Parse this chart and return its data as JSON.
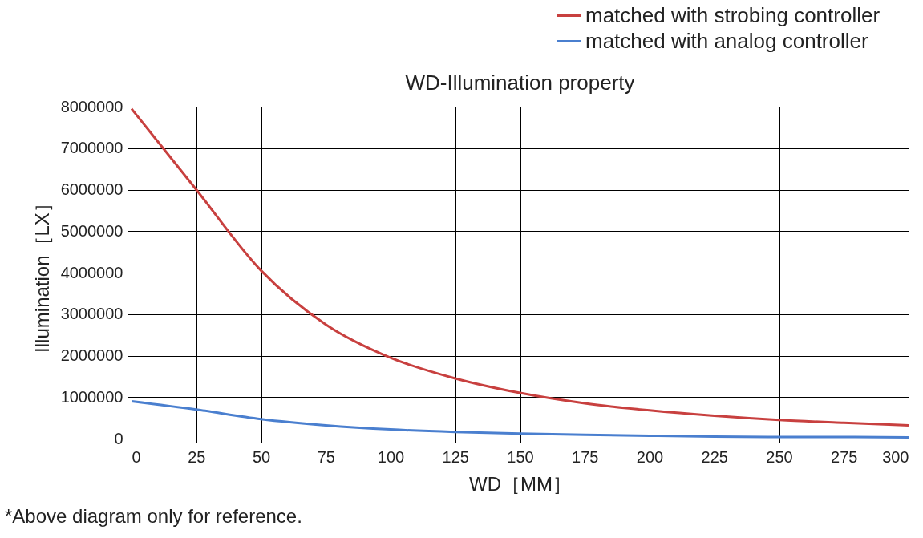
{
  "chart_data": {
    "type": "line",
    "title": "WD-Illumination property",
    "xlabel": "WD［MM］",
    "ylabel": "Illumination［LX］",
    "x": [
      0,
      25,
      50,
      75,
      100,
      125,
      150,
      175,
      200,
      225,
      250,
      275,
      300
    ],
    "series": [
      {
        "name": "matched with strobing controller",
        "color": "#c8403f",
        "values": [
          7950000,
          6000000,
          4050000,
          2750000,
          1950000,
          1450000,
          1100000,
          850000,
          680000,
          550000,
          450000,
          380000,
          320000
        ]
      },
      {
        "name": "matched with analog controller",
        "color": "#4a7fcf",
        "values": [
          900000,
          700000,
          470000,
          320000,
          220000,
          160000,
          120000,
          90000,
          70000,
          50000,
          40000,
          40000,
          30000
        ]
      }
    ],
    "xlim": [
      0,
      300
    ],
    "xticks": [
      0,
      25,
      50,
      75,
      100,
      125,
      150,
      175,
      200,
      225,
      250,
      275,
      300
    ],
    "ylim": [
      0,
      8000000
    ],
    "yticks": [
      0,
      1000000,
      2000000,
      3000000,
      4000000,
      5000000,
      6000000,
      7000000,
      8000000
    ],
    "grid": true,
    "legend": "top right",
    "marker": "none",
    "line_style": "solid",
    "annotations": [
      "*Above diagram only for reference."
    ]
  }
}
